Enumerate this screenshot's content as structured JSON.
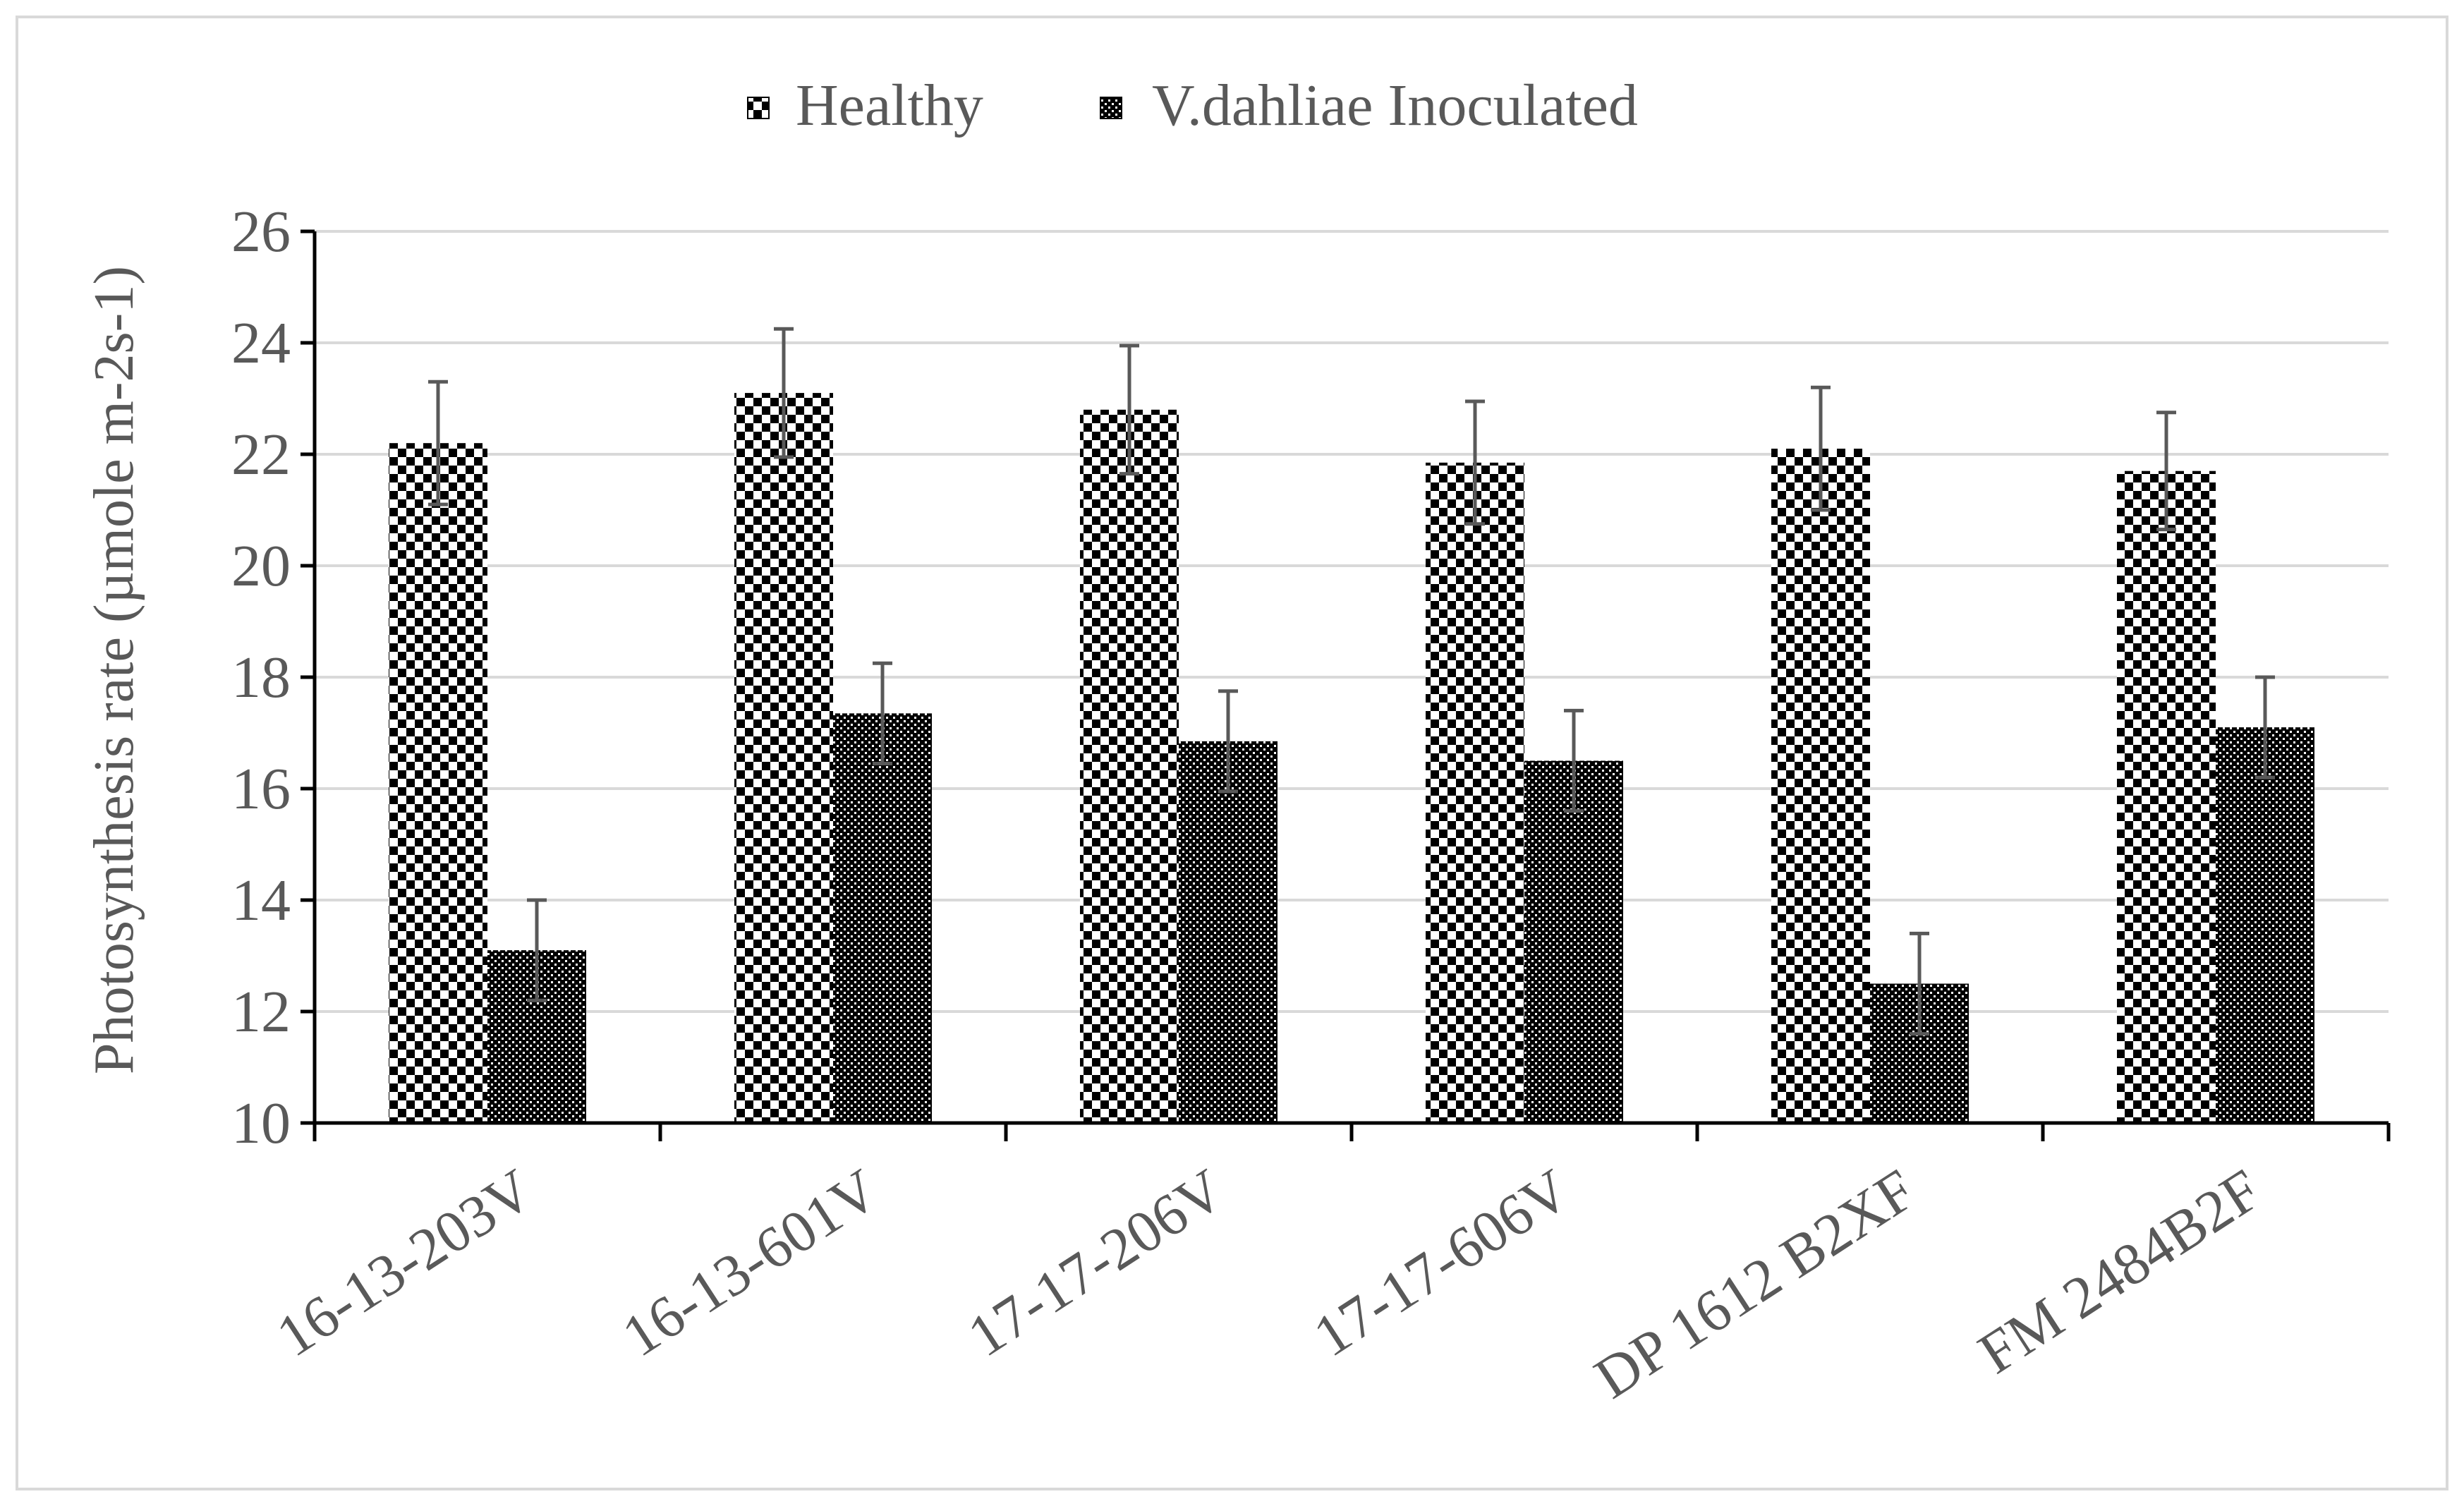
{
  "chart_data": {
    "type": "bar",
    "title": "",
    "xlabel": "",
    "ylabel": "Photosynthesis rate (µmole m-2s-1)",
    "ylim": [
      10,
      26
    ],
    "yticks": [
      10,
      12,
      14,
      16,
      18,
      20,
      22,
      24,
      26
    ],
    "grid": true,
    "legend_position": "top-center",
    "categories": [
      "16-13-203V",
      "16-13-601V",
      "17-17-206V",
      "17-17-606V",
      "DP 1612 B2XF",
      "FM 2484B2F"
    ],
    "series": [
      {
        "name": "Healthy",
        "pattern": "checkerboard",
        "values": [
          22.2,
          23.1,
          22.8,
          21.85,
          22.1,
          21.7
        ],
        "errors": [
          1.1,
          1.15,
          1.15,
          1.1,
          1.1,
          1.05
        ]
      },
      {
        "name": "V.dahliae Inoculated",
        "pattern": "dots",
        "values": [
          13.1,
          17.35,
          16.85,
          16.5,
          12.5,
          17.1
        ],
        "errors": [
          0.9,
          0.9,
          0.9,
          0.9,
          0.9,
          0.9
        ]
      }
    ],
    "colors": {
      "bar_fill": "#000000",
      "bar_pattern_light": "#ffffff",
      "gridline": "#d9d9d9",
      "axis": "#000000",
      "text": "#595959",
      "error_bar": "#595959"
    }
  }
}
